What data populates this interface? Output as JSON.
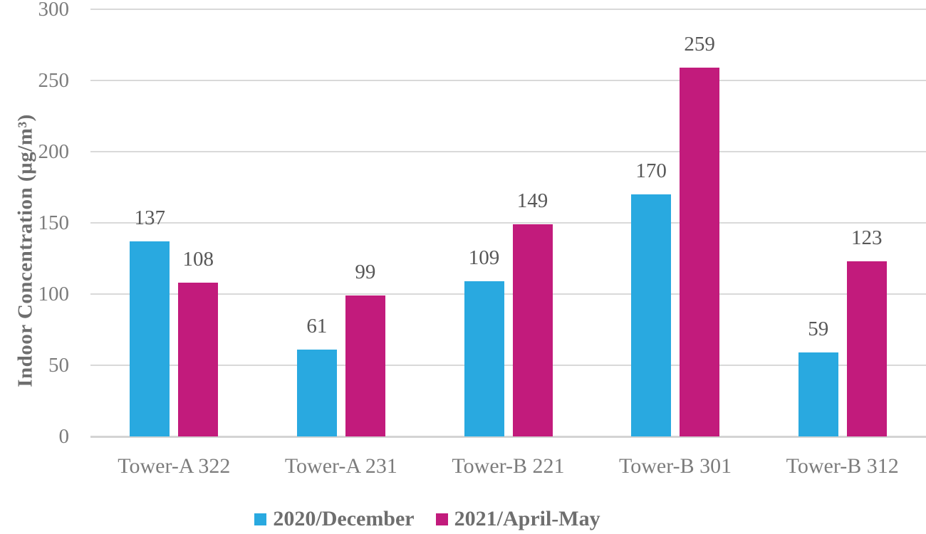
{
  "chart_data": {
    "type": "bar",
    "title": "",
    "ylabel": "Indoor Concentration (µg/m³)",
    "xlabel": "",
    "categories": [
      "Tower-A 322",
      "Tower-A 231",
      "Tower-B 221",
      "Tower-B 301",
      "Tower-B 312"
    ],
    "series": [
      {
        "name": "2020/December",
        "color": "#29a9e0",
        "values": [
          137,
          61,
          109,
          170,
          59
        ]
      },
      {
        "name": "2021/April-May",
        "color": "#c21b7c",
        "values": [
          108,
          99,
          149,
          259,
          123
        ]
      }
    ],
    "ylim": [
      0,
      300
    ],
    "yticks": [
      300,
      250,
      200,
      150,
      100,
      50,
      0
    ],
    "grid": true,
    "gridline_color": "#d9d9d9",
    "legend_position": "bottom",
    "data_labels": true
  },
  "text_colors": {
    "axis_tick": "#7c7c7c",
    "data_label": "#575757",
    "legend_label": "#6e6e6e",
    "axis_title": "#6e6e6e"
  }
}
